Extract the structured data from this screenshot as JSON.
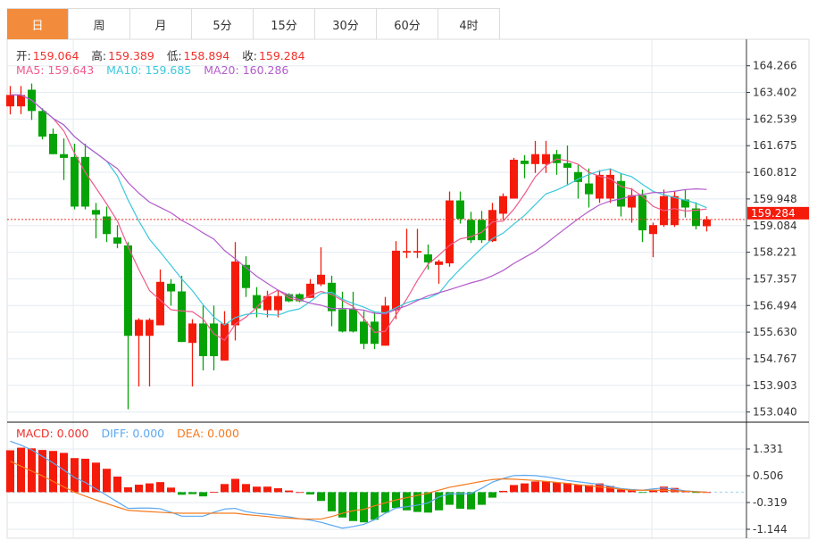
{
  "tabs": [
    {
      "label": "日",
      "active": true
    },
    {
      "label": "周"
    },
    {
      "label": "月"
    },
    {
      "label": "5分"
    },
    {
      "label": "15分"
    },
    {
      "label": "30分"
    },
    {
      "label": "60分"
    },
    {
      "label": "4时"
    }
  ],
  "ohlc_info": {
    "open_label": "开:",
    "open": "159.064",
    "high_label": "高:",
    "high": "159.389",
    "low_label": "低:",
    "low": "158.894",
    "close_label": "收:",
    "close": "159.284"
  },
  "ma_info": {
    "ma5": "MA5: 159.643",
    "ma10": "MA10: 159.685",
    "ma20": "MA20: 160.286"
  },
  "macd_info": {
    "macd": "MACD: 0.000",
    "diff": "DIFF: 0.000",
    "dea": "DEA: 0.000"
  },
  "current_price": "159.284",
  "colors": {
    "up": "#f51b0b",
    "down": "#06a306",
    "ma5": "#ef5a8b",
    "ma10": "#3cc8dc",
    "ma20": "#b35bcb",
    "diff": "#5aa8f0",
    "dea": "#f57a1e",
    "active_tab": "#f28c3c"
  },
  "chart_data": [
    {
      "type": "candlestick",
      "yticks": [
        "164.266",
        "163.402",
        "162.539",
        "161.675",
        "160.812",
        "159.948",
        "159.084",
        "158.221",
        "157.357",
        "156.494",
        "155.630",
        "154.767",
        "153.903",
        "153.040"
      ],
      "ylim": [
        153.04,
        164.266
      ],
      "grid": true,
      "ohlc": [
        [
          162.95,
          163.61,
          162.69,
          163.32
        ],
        [
          162.95,
          163.61,
          162.7,
          163.32
        ],
        [
          163.49,
          163.69,
          162.51,
          162.8
        ],
        [
          162.8,
          162.89,
          161.88,
          161.97
        ],
        [
          162.06,
          162.23,
          161.4,
          161.4
        ],
        [
          161.4,
          161.91,
          160.56,
          161.28
        ],
        [
          161.31,
          161.74,
          159.61,
          159.7
        ],
        [
          161.31,
          161.74,
          159.61,
          159.7
        ],
        [
          159.59,
          159.82,
          158.67,
          159.44
        ],
        [
          159.38,
          159.7,
          158.55,
          158.81
        ],
        [
          158.7,
          159.1,
          158.35,
          158.5
        ],
        [
          158.44,
          158.55,
          153.13,
          155.51
        ],
        [
          155.51,
          156.08,
          153.87,
          156.03
        ],
        [
          155.51,
          156.08,
          153.87,
          156.03
        ],
        [
          155.85,
          157.66,
          155.85,
          157.26
        ],
        [
          157.2,
          157.35,
          156.49,
          156.95
        ],
        [
          156.95,
          157.46,
          155.31,
          155.31
        ],
        [
          155.28,
          156.05,
          153.87,
          155.91
        ],
        [
          155.91,
          156.49,
          154.39,
          154.85
        ],
        [
          155.91,
          156.49,
          154.39,
          154.85
        ],
        [
          154.71,
          156.31,
          154.71,
          155.91
        ],
        [
          155.85,
          158.55,
          155.36,
          157.92
        ],
        [
          157.81,
          158.09,
          156.77,
          157.06
        ],
        [
          156.83,
          157.09,
          156.11,
          156.4
        ],
        [
          156.34,
          156.97,
          156.11,
          156.8
        ],
        [
          156.34,
          157.0,
          156.11,
          156.8
        ],
        [
          156.86,
          156.89,
          156.6,
          156.63
        ],
        [
          156.86,
          156.89,
          156.6,
          156.63
        ],
        [
          156.74,
          157.35,
          156.74,
          157.2
        ],
        [
          157.18,
          158.38,
          157.12,
          157.49
        ],
        [
          157.23,
          157.46,
          155.82,
          156.31
        ],
        [
          156.37,
          156.94,
          155.62,
          155.65
        ],
        [
          156.37,
          156.94,
          155.62,
          155.65
        ],
        [
          155.97,
          156.31,
          155.08,
          155.25
        ],
        [
          155.97,
          156.31,
          155.08,
          155.25
        ],
        [
          155.19,
          156.77,
          155.19,
          156.49
        ],
        [
          156.34,
          158.58,
          156.05,
          158.27
        ],
        [
          158.21,
          158.98,
          158.03,
          158.26
        ],
        [
          158.21,
          158.98,
          158.03,
          158.26
        ],
        [
          158.15,
          158.47,
          157.66,
          157.89
        ],
        [
          157.81,
          157.98,
          157.2,
          157.92
        ],
        [
          157.86,
          160.19,
          157.75,
          159.9
        ],
        [
          159.9,
          160.19,
          159.15,
          159.3
        ],
        [
          159.27,
          159.53,
          158.52,
          158.61
        ],
        [
          159.27,
          159.56,
          158.52,
          158.61
        ],
        [
          158.58,
          159.82,
          158.55,
          159.59
        ],
        [
          159.47,
          160.13,
          159.27,
          160.04
        ],
        [
          159.96,
          161.28,
          159.96,
          161.22
        ],
        [
          161.19,
          161.37,
          160.62,
          161.08
        ],
        [
          161.08,
          161.83,
          160.79,
          161.4
        ],
        [
          161.08,
          161.83,
          160.79,
          161.4
        ],
        [
          161.4,
          161.54,
          160.73,
          161.11
        ],
        [
          161.11,
          161.68,
          160.42,
          160.96
        ],
        [
          160.82,
          161.05,
          159.96,
          160.5
        ],
        [
          160.45,
          160.94,
          159.67,
          160.1
        ],
        [
          159.96,
          160.88,
          159.82,
          160.73
        ],
        [
          159.96,
          160.94,
          159.82,
          160.73
        ],
        [
          160.53,
          160.79,
          159.38,
          159.7
        ],
        [
          159.67,
          160.3,
          159.18,
          160.07
        ],
        [
          160.07,
          160.25,
          158.55,
          158.93
        ],
        [
          158.81,
          159.18,
          158.06,
          159.1
        ],
        [
          159.1,
          160.25,
          159.04,
          160.04
        ],
        [
          159.1,
          160.19,
          159.04,
          160.04
        ],
        [
          159.93,
          160.25,
          159.35,
          159.67
        ],
        [
          159.64,
          159.84,
          158.96,
          159.07
        ],
        [
          159.064,
          159.389,
          158.894,
          159.284
        ]
      ],
      "moving_averages": [
        "MA5",
        "MA10",
        "MA20"
      ]
    },
    {
      "type": "bar",
      "yticks": [
        "1.331",
        "0.506",
        "-0.319",
        "-1.144"
      ],
      "ylim": [
        -1.144,
        1.331
      ],
      "macd": [
        1.29,
        1.37,
        1.35,
        1.3,
        1.27,
        1.21,
        1.05,
        1.03,
        0.91,
        0.72,
        0.48,
        0.15,
        0.23,
        0.27,
        0.31,
        0.14,
        -0.08,
        -0.06,
        -0.13,
        0.01,
        0.25,
        0.41,
        0.25,
        0.17,
        0.17,
        0.12,
        0.05,
        0.0,
        -0.07,
        -0.27,
        -0.59,
        -0.78,
        -0.89,
        -0.93,
        -0.85,
        -0.63,
        -0.49,
        -0.56,
        -0.61,
        -0.63,
        -0.56,
        -0.39,
        -0.51,
        -0.53,
        -0.39,
        -0.17,
        0.04,
        0.22,
        0.27,
        0.33,
        0.34,
        0.3,
        0.28,
        0.23,
        0.22,
        0.27,
        0.19,
        0.08,
        0.05,
        -0.02,
        0.06,
        0.17,
        0.13,
        0.04,
        -0.01,
        0.0
      ],
      "diff": [
        1.57,
        1.45,
        1.3,
        1.1,
        0.9,
        0.68,
        0.45,
        0.3,
        0.1,
        -0.1,
        -0.3,
        -0.5,
        -0.49,
        -0.49,
        -0.51,
        -0.62,
        -0.74,
        -0.74,
        -0.74,
        -0.62,
        -0.52,
        -0.5,
        -0.6,
        -0.65,
        -0.68,
        -0.72,
        -0.76,
        -0.82,
        -0.86,
        -0.93,
        -1.02,
        -1.11,
        -1.06,
        -0.99,
        -0.85,
        -0.65,
        -0.49,
        -0.45,
        -0.4,
        -0.33,
        -0.15,
        -0.05,
        -0.05,
        -0.04,
        0.12,
        0.31,
        0.42,
        0.51,
        0.52,
        0.51,
        0.47,
        0.42,
        0.36,
        0.32,
        0.28,
        0.24,
        0.18,
        0.11,
        0.08,
        0.06,
        0.1,
        0.13,
        0.09,
        0.04,
        0.02,
        0.0
      ],
      "dea": [
        0.95,
        0.8,
        0.65,
        0.5,
        0.33,
        0.16,
        0.0,
        -0.12,
        -0.24,
        -0.35,
        -0.46,
        -0.56,
        -0.58,
        -0.6,
        -0.62,
        -0.64,
        -0.65,
        -0.65,
        -0.65,
        -0.65,
        -0.65,
        -0.65,
        -0.69,
        -0.72,
        -0.75,
        -0.79,
        -0.8,
        -0.82,
        -0.83,
        -0.83,
        -0.75,
        -0.65,
        -0.57,
        -0.53,
        -0.42,
        -0.33,
        -0.24,
        -0.17,
        -0.1,
        -0.03,
        0.06,
        0.15,
        0.21,
        0.27,
        0.33,
        0.39,
        0.41,
        0.4,
        0.38,
        0.36,
        0.33,
        0.3,
        0.27,
        0.23,
        0.2,
        0.16,
        0.13,
        0.09,
        0.06,
        0.06,
        0.06,
        0.06,
        0.04,
        0.03,
        0.01,
        0.0
      ]
    }
  ]
}
